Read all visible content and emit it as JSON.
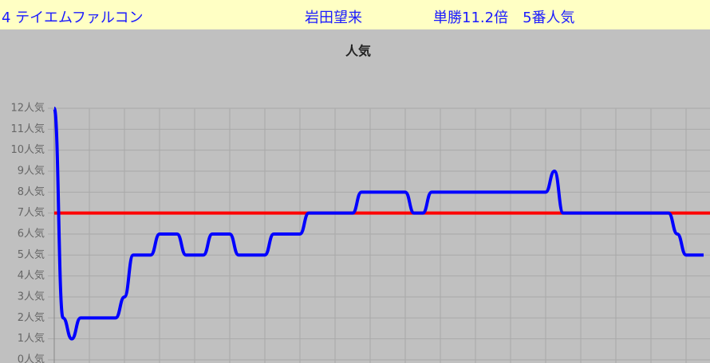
{
  "header": {
    "horse": "4 テイエムファルコン",
    "jockey": "岩田望来",
    "odds": "単勝11.2倍　5番人気"
  },
  "chart_data": {
    "type": "line",
    "title": "人気",
    "series": [
      {
        "color": "#0000ff",
        "values": [
          12,
          2,
          1,
          2,
          2,
          2,
          2,
          2,
          3,
          5,
          5,
          5,
          6,
          6,
          6,
          5,
          5,
          5,
          6,
          6,
          6,
          5,
          5,
          5,
          5,
          6,
          6,
          6,
          6,
          7,
          7,
          7,
          7,
          7,
          7,
          8,
          8,
          8,
          8,
          8,
          8,
          7,
          7,
          8,
          8,
          8,
          8,
          8,
          8,
          8,
          8,
          8,
          8,
          8,
          8,
          8,
          8,
          9,
          7,
          7,
          7,
          7,
          7,
          7,
          7,
          7,
          7,
          7,
          7,
          7,
          7,
          6,
          5,
          5,
          5
        ]
      }
    ],
    "hline": {
      "value": 7,
      "color": "#ff0000"
    },
    "ylim": [
      0,
      12
    ],
    "yticks": [
      {
        "value": 0,
        "label": "0人気"
      },
      {
        "value": 1,
        "label": "1人気"
      },
      {
        "value": 2,
        "label": "2人気"
      },
      {
        "value": 3,
        "label": "3人気"
      },
      {
        "value": 4,
        "label": "4人気"
      },
      {
        "value": 5,
        "label": "5人気"
      },
      {
        "value": 6,
        "label": "6人気"
      },
      {
        "value": 7,
        "label": "7人気"
      },
      {
        "value": 8,
        "label": "8人気"
      },
      {
        "value": 9,
        "label": "9人気"
      },
      {
        "value": 10,
        "label": "10人気"
      },
      {
        "value": 11,
        "label": "11人気"
      },
      {
        "value": 12,
        "label": "12人気"
      }
    ],
    "grid": true
  }
}
